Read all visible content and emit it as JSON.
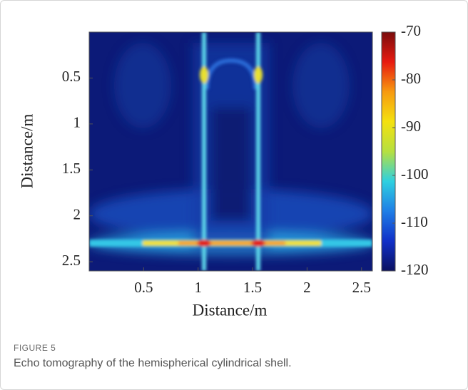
{
  "chart_data": {
    "type": "heatmap",
    "xlabel": "Distance/m",
    "ylabel": "Distance/m",
    "xlim": [
      0,
      2.6
    ],
    "ylim": [
      0,
      2.6
    ],
    "y_inverted": true,
    "xticks": [
      0.5,
      1,
      1.5,
      2,
      2.5
    ],
    "yticks": [
      0.5,
      1,
      1.5,
      2,
      2.5
    ],
    "clim": [
      -120,
      -70
    ],
    "cticks": [
      -70,
      -80,
      -90,
      -100,
      -110,
      -120
    ],
    "colormap": [
      "#0a1060",
      "#1030c8",
      "#1f7ee6",
      "#2ed0e0",
      "#b6e040",
      "#f4e10f",
      "#f79a10",
      "#e81a10",
      "#7a0c0c"
    ]
  },
  "figure_label": "FIGURE 5",
  "caption": "Echo tomography of the hemispherical cylindrical shell."
}
